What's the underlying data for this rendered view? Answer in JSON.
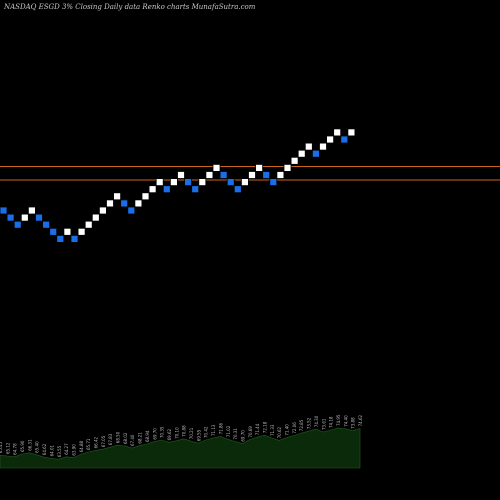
{
  "header": {
    "title": "NASDAQ ESGD 3% Closing Daily data Renko charts MunafaSutra.com"
  },
  "colors": {
    "background": "#000000",
    "up_brick": "#ffffff",
    "down_brick": "#1a6fe8",
    "brick_outline": "#000000",
    "reference_line": "#c8641e",
    "volume_area": "#0a2a0a",
    "volume_outline": "#1f5c1f"
  },
  "chart_data": {
    "type": "renko",
    "bricks": [
      {
        "c": 0,
        "lvl": 5,
        "dir": "down"
      },
      {
        "c": 1,
        "lvl": 4,
        "dir": "down"
      },
      {
        "c": 2,
        "lvl": 3,
        "dir": "down"
      },
      {
        "c": 3,
        "lvl": 4,
        "dir": "up"
      },
      {
        "c": 4,
        "lvl": 5,
        "dir": "up"
      },
      {
        "c": 5,
        "lvl": 4,
        "dir": "down"
      },
      {
        "c": 6,
        "lvl": 3,
        "dir": "down"
      },
      {
        "c": 7,
        "lvl": 2,
        "dir": "down"
      },
      {
        "c": 8,
        "lvl": 1,
        "dir": "down"
      },
      {
        "c": 9,
        "lvl": 2,
        "dir": "up"
      },
      {
        "c": 10,
        "lvl": 1,
        "dir": "down"
      },
      {
        "c": 11,
        "lvl": 2,
        "dir": "up"
      },
      {
        "c": 12,
        "lvl": 3,
        "dir": "up"
      },
      {
        "c": 13,
        "lvl": 4,
        "dir": "up"
      },
      {
        "c": 14,
        "lvl": 5,
        "dir": "up"
      },
      {
        "c": 15,
        "lvl": 6,
        "dir": "up"
      },
      {
        "c": 16,
        "lvl": 7,
        "dir": "up"
      },
      {
        "c": 17,
        "lvl": 6,
        "dir": "down"
      },
      {
        "c": 18,
        "lvl": 5,
        "dir": "down"
      },
      {
        "c": 19,
        "lvl": 6,
        "dir": "up"
      },
      {
        "c": 20,
        "lvl": 7,
        "dir": "up"
      },
      {
        "c": 21,
        "lvl": 8,
        "dir": "up"
      },
      {
        "c": 22,
        "lvl": 9,
        "dir": "up"
      },
      {
        "c": 23,
        "lvl": 8,
        "dir": "down"
      },
      {
        "c": 24,
        "lvl": 9,
        "dir": "up"
      },
      {
        "c": 25,
        "lvl": 10,
        "dir": "up"
      },
      {
        "c": 26,
        "lvl": 9,
        "dir": "down"
      },
      {
        "c": 27,
        "lvl": 8,
        "dir": "down"
      },
      {
        "c": 28,
        "lvl": 9,
        "dir": "up"
      },
      {
        "c": 29,
        "lvl": 10,
        "dir": "up"
      },
      {
        "c": 30,
        "lvl": 11,
        "dir": "up"
      },
      {
        "c": 31,
        "lvl": 10,
        "dir": "down"
      },
      {
        "c": 32,
        "lvl": 9,
        "dir": "down"
      },
      {
        "c": 33,
        "lvl": 8,
        "dir": "down"
      },
      {
        "c": 34,
        "lvl": 9,
        "dir": "up"
      },
      {
        "c": 35,
        "lvl": 10,
        "dir": "up"
      },
      {
        "c": 36,
        "lvl": 11,
        "dir": "up"
      },
      {
        "c": 37,
        "lvl": 10,
        "dir": "down"
      },
      {
        "c": 38,
        "lvl": 9,
        "dir": "down"
      },
      {
        "c": 39,
        "lvl": 10,
        "dir": "up"
      },
      {
        "c": 40,
        "lvl": 11,
        "dir": "up"
      },
      {
        "c": 41,
        "lvl": 12,
        "dir": "up"
      },
      {
        "c": 42,
        "lvl": 13,
        "dir": "up"
      },
      {
        "c": 43,
        "lvl": 14,
        "dir": "up"
      },
      {
        "c": 44,
        "lvl": 13,
        "dir": "down"
      },
      {
        "c": 45,
        "lvl": 14,
        "dir": "up"
      },
      {
        "c": 46,
        "lvl": 15,
        "dir": "up"
      },
      {
        "c": 47,
        "lvl": 16,
        "dir": "up"
      },
      {
        "c": 48,
        "lvl": 15,
        "dir": "down"
      },
      {
        "c": 49,
        "lvl": 16,
        "dir": "up"
      }
    ],
    "reference_lines": [
      11.2,
      9.3
    ],
    "volume": [
      0.32,
      0.3,
      0.28,
      0.35,
      0.38,
      0.33,
      0.27,
      0.24,
      0.22,
      0.28,
      0.26,
      0.34,
      0.4,
      0.44,
      0.47,
      0.52,
      0.57,
      0.55,
      0.5,
      0.56,
      0.6,
      0.66,
      0.7,
      0.64,
      0.68,
      0.73,
      0.67,
      0.62,
      0.7,
      0.75,
      0.79,
      0.72,
      0.66,
      0.61,
      0.71,
      0.77,
      0.82,
      0.75,
      0.69,
      0.76,
      0.81,
      0.87,
      0.92,
      0.97,
      0.9,
      0.95,
      1.0,
      0.98,
      0.93,
      0.99
    ],
    "volume_labels": [
      "65.45",
      "65.12",
      "64.78",
      "65.90",
      "66.31",
      "65.40",
      "64.62",
      "64.01",
      "63.55",
      "64.27",
      "63.90",
      "64.88",
      "65.71",
      "66.42",
      "67.05",
      "67.83",
      "68.50",
      "68.02",
      "67.40",
      "68.21",
      "68.94",
      "69.70",
      "70.35",
      "69.62",
      "70.10",
      "70.88",
      "70.21",
      "69.55",
      "70.42",
      "71.13",
      "71.86",
      "71.02",
      "70.31",
      "69.70",
      "70.69",
      "71.44",
      "72.18",
      "71.33",
      "70.62",
      "71.40",
      "72.06",
      "72.85",
      "73.52",
      "74.30",
      "73.61",
      "74.18",
      "74.95",
      "74.40",
      "73.88",
      "74.62"
    ]
  }
}
